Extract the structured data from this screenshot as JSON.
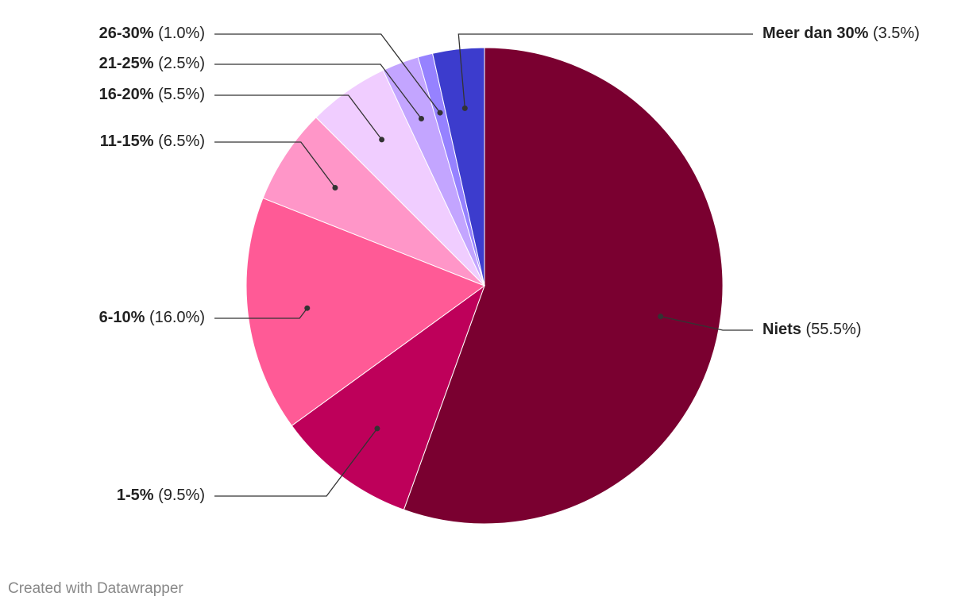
{
  "chart_data": {
    "type": "pie",
    "categories": [
      "Niets",
      "1-5%",
      "6-10%",
      "11-15%",
      "16-20%",
      "21-25%",
      "26-30%",
      "Meer dan 30%"
    ],
    "values": [
      55.5,
      9.5,
      16.0,
      6.5,
      5.5,
      2.5,
      1.0,
      3.5
    ],
    "value_labels": [
      "(55.5%)",
      "(9.5%)",
      "(16.0%)",
      "(6.5%)",
      "(5.5%)",
      "(2.5%)",
      "(1.0%)",
      "(3.5%)"
    ],
    "colors": [
      "#7a0030",
      "#be005a",
      "#ff5a96",
      "#ff96c8",
      "#f0cdff",
      "#c3a5ff",
      "#9682ff",
      "#3c3ccd"
    ],
    "credit": "Created with Datawrapper"
  }
}
